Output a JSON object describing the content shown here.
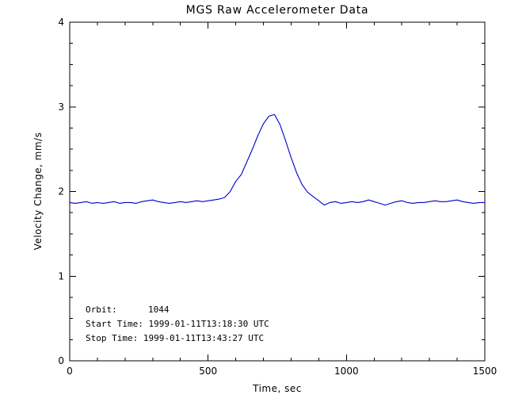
{
  "window": {
    "title": "MGS Raw Accelerometer Data"
  },
  "colors": {
    "line": "#0000cc",
    "axis": "#000000",
    "text": "#000000",
    "background": "#ffffff"
  },
  "chart_data": {
    "type": "line",
    "title": "MGS Raw Accelerometer Data",
    "xlabel": "Time, sec",
    "ylabel": "Velocity Change, mm/s",
    "xlim": [
      0,
      1500
    ],
    "ylim": [
      0,
      4
    ],
    "xticks": [
      0,
      500,
      1000,
      1500
    ],
    "yticks": [
      0,
      1,
      2,
      3,
      4
    ],
    "x_minor_step": 100,
    "y_minor_step": 0.25,
    "grid": false,
    "legend": null,
    "annotations": {
      "orbit_label": "Orbit:",
      "orbit_value": "1044",
      "start_time": "Start Time: 1999-01-11T13:18:30 UTC",
      "stop_time": "Stop Time: 1999-01-11T13:43:27 UTC"
    },
    "series": [
      {
        "name": "velocity-change",
        "color": "#0000cc",
        "x": [
          0,
          20,
          40,
          60,
          80,
          100,
          120,
          140,
          160,
          180,
          200,
          220,
          240,
          260,
          280,
          300,
          320,
          340,
          360,
          380,
          400,
          420,
          440,
          460,
          480,
          500,
          520,
          540,
          560,
          580,
          600,
          620,
          640,
          660,
          680,
          700,
          720,
          740,
          760,
          780,
          800,
          820,
          840,
          860,
          880,
          900,
          920,
          940,
          960,
          980,
          1000,
          1020,
          1040,
          1060,
          1080,
          1100,
          1120,
          1140,
          1160,
          1180,
          1200,
          1220,
          1240,
          1260,
          1280,
          1300,
          1320,
          1340,
          1360,
          1380,
          1400,
          1420,
          1440,
          1460,
          1480,
          1500
        ],
        "y": [
          1.87,
          1.86,
          1.87,
          1.88,
          1.86,
          1.87,
          1.86,
          1.87,
          1.88,
          1.86,
          1.87,
          1.87,
          1.86,
          1.88,
          1.89,
          1.9,
          1.88,
          1.87,
          1.86,
          1.87,
          1.88,
          1.87,
          1.88,
          1.89,
          1.88,
          1.89,
          1.9,
          1.91,
          1.93,
          2.0,
          2.12,
          2.2,
          2.35,
          2.5,
          2.66,
          2.8,
          2.89,
          2.91,
          2.79,
          2.6,
          2.4,
          2.22,
          2.08,
          1.99,
          1.94,
          1.89,
          1.84,
          1.87,
          1.88,
          1.86,
          1.87,
          1.88,
          1.87,
          1.88,
          1.9,
          1.88,
          1.86,
          1.84,
          1.86,
          1.88,
          1.89,
          1.87,
          1.86,
          1.87,
          1.87,
          1.88,
          1.89,
          1.88,
          1.88,
          1.89,
          1.9,
          1.88,
          1.87,
          1.86,
          1.87,
          1.87
        ]
      }
    ]
  }
}
